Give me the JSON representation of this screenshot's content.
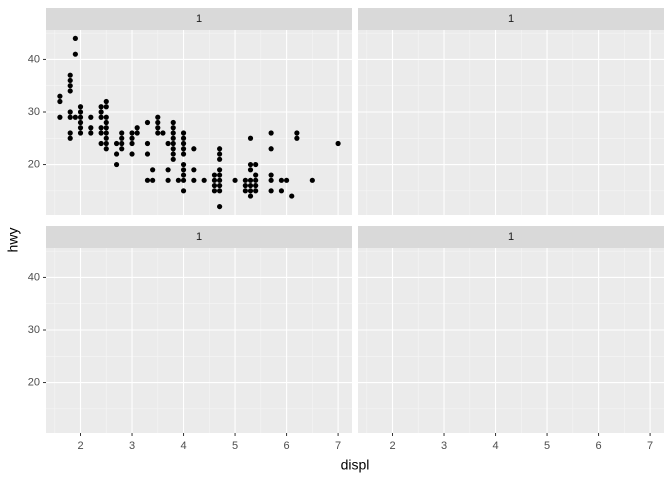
{
  "chart_data": {
    "type": "scatter",
    "x_label": "displ",
    "y_label": "hwy",
    "xlim": [
      1.33,
      7.27
    ],
    "ylim": [
      10.4,
      45.6
    ],
    "xticks": [
      2,
      3,
      4,
      5,
      6,
      7
    ],
    "yticks": [
      20,
      30,
      40
    ],
    "grid": true,
    "color": "#000000",
    "panels": [
      {
        "strip": "1",
        "x": [
          1.6,
          1.6,
          1.6,
          1.8,
          1.8,
          1.8,
          1.8,
          1.8,
          1.8,
          1.8,
          1.8,
          1.9,
          1.9,
          1.9,
          2.0,
          2.0,
          2.0,
          2.0,
          2.0,
          2.0,
          2.2,
          2.2,
          2.2,
          2.4,
          2.4,
          2.4,
          2.4,
          2.4,
          2.4,
          2.5,
          2.5,
          2.5,
          2.5,
          2.5,
          2.5,
          2.5,
          2.5,
          2.5,
          2.7,
          2.7,
          2.7,
          2.8,
          2.8,
          2.8,
          2.8,
          3.0,
          3.0,
          3.0,
          3.0,
          3.1,
          3.1,
          3.3,
          3.3,
          3.3,
          3.3,
          3.4,
          3.4,
          3.5,
          3.5,
          3.5,
          3.5,
          3.6,
          3.7,
          3.7,
          3.7,
          3.8,
          3.8,
          3.8,
          3.8,
          3.8,
          3.8,
          3.8,
          3.8,
          3.9,
          4.0,
          4.0,
          4.0,
          4.0,
          4.0,
          4.0,
          4.0,
          4.0,
          4.0,
          4.0,
          4.2,
          4.2,
          4.2,
          4.4,
          4.6,
          4.6,
          4.6,
          4.6,
          4.7,
          4.7,
          4.7,
          4.7,
          4.7,
          4.7,
          4.7,
          4.7,
          4.7,
          5.0,
          5.2,
          5.2,
          5.2,
          5.3,
          5.3,
          5.3,
          5.3,
          5.3,
          5.3,
          5.3,
          5.4,
          5.4,
          5.4,
          5.4,
          5.4,
          5.7,
          5.7,
          5.7,
          5.7,
          5.7,
          5.9,
          5.9,
          6.0,
          6.1,
          6.2,
          6.2,
          6.5,
          7.0
        ],
        "values": [
          33,
          32,
          29,
          29,
          26,
          25,
          37,
          35,
          34,
          36,
          30,
          44,
          41,
          29,
          31,
          30,
          29,
          28,
          27,
          26,
          29,
          27,
          26,
          31,
          30,
          29,
          27,
          26,
          24,
          32,
          31,
          29,
          28,
          27,
          26,
          25,
          24,
          23,
          24,
          22,
          20,
          26,
          25,
          24,
          23,
          26,
          25,
          24,
          22,
          27,
          26,
          28,
          24,
          22,
          17,
          19,
          17,
          29,
          28,
          27,
          26,
          26,
          24,
          19,
          17,
          28,
          27,
          26,
          25,
          24,
          23,
          22,
          21,
          17,
          26,
          25,
          24,
          23,
          22,
          20,
          19,
          17,
          15,
          18,
          23,
          19,
          17,
          17,
          18,
          17,
          16,
          15,
          23,
          22,
          21,
          19,
          18,
          17,
          16,
          15,
          12,
          17,
          17,
          16,
          15,
          25,
          20,
          19,
          17,
          16,
          15,
          14,
          20,
          18,
          17,
          16,
          15,
          26,
          23,
          18,
          17,
          15,
          17,
          15,
          17,
          14,
          26,
          25,
          17,
          24
        ]
      },
      {
        "strip": "1",
        "x": [],
        "values": []
      },
      {
        "strip": "1",
        "x": [],
        "values": []
      },
      {
        "strip": "1",
        "x": [],
        "values": []
      }
    ]
  }
}
